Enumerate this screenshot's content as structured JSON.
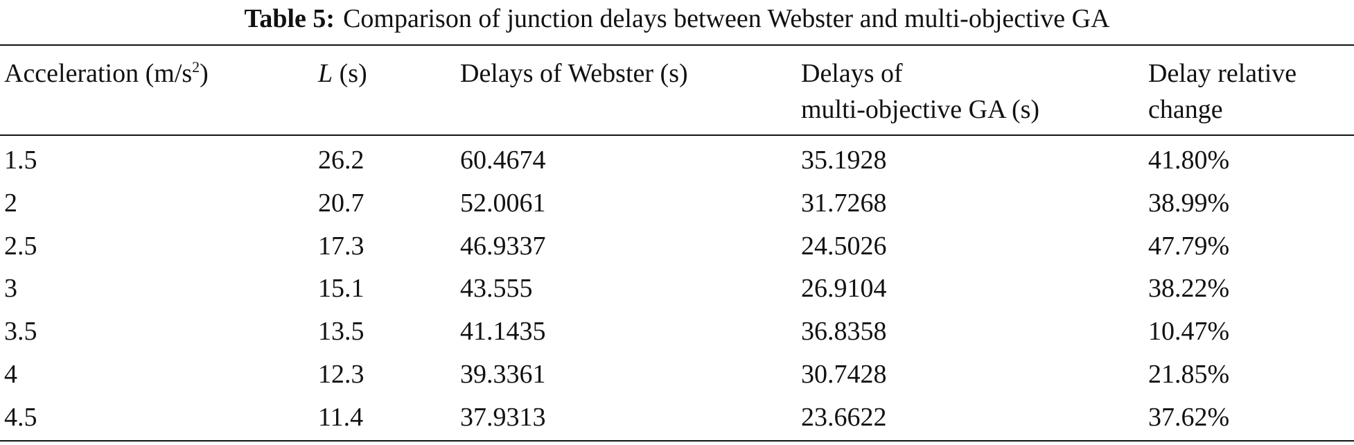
{
  "header": {
    "label": "Table 5:",
    "title": "Comparison of junction delays between Webster and multi-objective GA"
  },
  "table": {
    "columns": [
      {
        "text": "Acceleration (m/s",
        "superscript": "2",
        "suffix": ")"
      },
      {
        "symbol": "L",
        "unit": "(s)"
      },
      {
        "text": "Delays of Webster (s)"
      },
      {
        "lines": [
          "Delays of",
          "multi-objective GA (s)"
        ]
      },
      {
        "lines": [
          "Delay relative",
          "change"
        ]
      }
    ],
    "rows": [
      [
        "1.5",
        "26.2",
        "60.4674",
        "35.1928",
        "41.80%"
      ],
      [
        "2",
        "20.7",
        "52.0061",
        "31.7268",
        "38.99%"
      ],
      [
        "2.5",
        "17.3",
        "46.9337",
        "24.5026",
        "47.79%"
      ],
      [
        "3",
        "15.1",
        "43.555",
        "26.9104",
        "38.22%"
      ],
      [
        "3.5",
        "13.5",
        "41.1435",
        "36.8358",
        "10.47%"
      ],
      [
        "4",
        "12.3",
        "39.3361",
        "30.7428",
        "21.85%"
      ],
      [
        "4.5",
        "11.4",
        "37.9313",
        "23.6622",
        "37.62%"
      ]
    ]
  }
}
